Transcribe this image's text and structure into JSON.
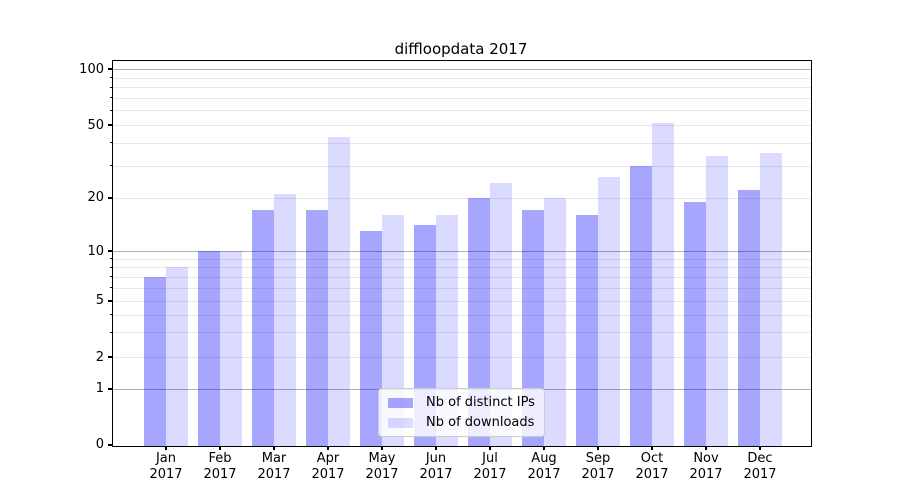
{
  "title": "diffloopdata 2017",
  "chart_data": {
    "type": "bar",
    "title": "diffloopdata 2017",
    "categories": [
      "Jan",
      "Feb",
      "Mar",
      "Apr",
      "May",
      "Jun",
      "Jul",
      "Aug",
      "Sep",
      "Oct",
      "Nov",
      "Dec"
    ],
    "year": "2017",
    "series": [
      {
        "name": "Nb of distinct IPs",
        "color_hex": "#a6a6fa",
        "base_color": "#0000ff",
        "alpha": 0.35,
        "values": [
          7,
          10,
          17,
          17,
          13,
          14,
          20,
          17,
          16,
          30,
          19,
          22
        ]
      },
      {
        "name": "Nb of downloads",
        "color_hex": "#dcdcfb",
        "base_color": "#0000ff",
        "alpha": 0.14,
        "values": [
          8,
          10,
          21,
          43,
          16,
          16,
          24,
          20,
          26,
          51,
          34,
          35
        ]
      }
    ],
    "xlabel": "",
    "ylabel": "",
    "yscale": "symlog",
    "ylim": [
      0,
      110
    ],
    "yticks": [
      0,
      1,
      2,
      5,
      10,
      20,
      50,
      100
    ],
    "ytick_labels": [
      "0",
      "1",
      "2",
      "5",
      "10",
      "20",
      "50",
      "100"
    ],
    "major_gridlines": [
      1,
      10,
      100
    ],
    "minor_gridlines": [
      2,
      3,
      4,
      5,
      6,
      7,
      8,
      9,
      20,
      30,
      40,
      50,
      60,
      70,
      80,
      90
    ],
    "grid": true,
    "legend_position": "lower center"
  }
}
